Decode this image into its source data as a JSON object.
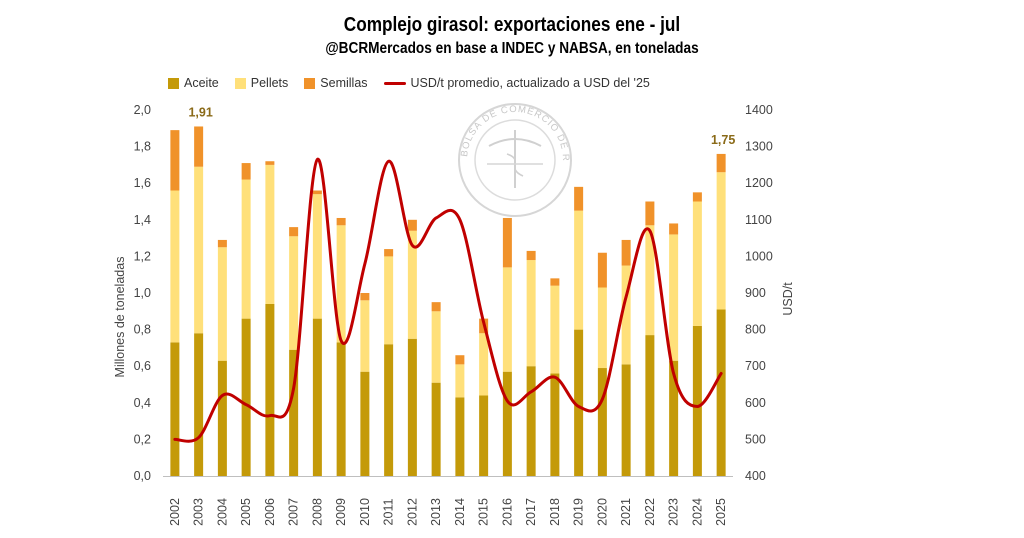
{
  "chart_data": {
    "type": "bar",
    "stacked": true,
    "title": "Complejo girasol: exportaciones ene - jul",
    "subtitle": "@BCRMercados en base a INDEC y NABSA, en toneladas",
    "watermark": "BOLSA DE COMERCIO DE ROSARIO",
    "categories": [
      "2002",
      "2003",
      "2004",
      "2005",
      "2006",
      "2007",
      "2008",
      "2009",
      "2010",
      "2011",
      "2012",
      "2013",
      "2014",
      "2015",
      "2016",
      "2017",
      "2018",
      "2019",
      "2020",
      "2021",
      "2022",
      "2023",
      "2024",
      "2025"
    ],
    "series": [
      {
        "name": "Aceite",
        "color": "#c49a09",
        "axis": "left",
        "values": [
          0.73,
          0.78,
          0.63,
          0.86,
          0.94,
          0.69,
          0.86,
          0.73,
          0.57,
          0.72,
          0.75,
          0.51,
          0.43,
          0.44,
          0.57,
          0.6,
          0.56,
          0.8,
          0.59,
          0.61,
          0.77,
          0.63,
          0.82,
          0.91
        ]
      },
      {
        "name": "Pellets",
        "color": "#ffe07a",
        "axis": "left",
        "values": [
          0.83,
          0.91,
          0.62,
          0.76,
          0.76,
          0.62,
          0.68,
          0.64,
          0.39,
          0.48,
          0.59,
          0.39,
          0.18,
          0.34,
          0.57,
          0.58,
          0.48,
          0.65,
          0.44,
          0.54,
          0.6,
          0.69,
          0.68,
          0.75
        ]
      },
      {
        "name": "Semillas",
        "color": "#f0922a",
        "axis": "left",
        "values": [
          0.33,
          0.22,
          0.04,
          0.09,
          0.02,
          0.05,
          0.02,
          0.04,
          0.04,
          0.04,
          0.06,
          0.05,
          0.05,
          0.08,
          0.27,
          0.05,
          0.04,
          0.13,
          0.19,
          0.14,
          0.13,
          0.06,
          0.05,
          0.1
        ]
      },
      {
        "name": "USD/t promedio, actualizado a USD del '25",
        "type": "line",
        "color": "#c00000",
        "axis": "right",
        "values": [
          500,
          505,
          620,
          595,
          565,
          640,
          1265,
          770,
          980,
          1260,
          1030,
          1105,
          1100,
          820,
          605,
          630,
          670,
          590,
          610,
          890,
          1070,
          680,
          590,
          680
        ]
      }
    ],
    "data_labels": [
      {
        "category": "2003",
        "text": "1,91"
      },
      {
        "category": "2025",
        "text": "1,75"
      }
    ],
    "ylabel": "Millones de toneladas",
    "y2label": "USD/t",
    "ylim": [
      0,
      2.0
    ],
    "y2lim": [
      400,
      1400
    ],
    "yticks": [
      "0,0",
      "0,2",
      "0,4",
      "0,6",
      "0,8",
      "1,0",
      "1,2",
      "1,4",
      "1,6",
      "1,8",
      "2,0"
    ],
    "y2ticks": [
      "400",
      "500",
      "600",
      "700",
      "800",
      "900",
      "1000",
      "1100",
      "1200",
      "1300",
      "1400"
    ],
    "legend_position": "top",
    "grid": false
  }
}
